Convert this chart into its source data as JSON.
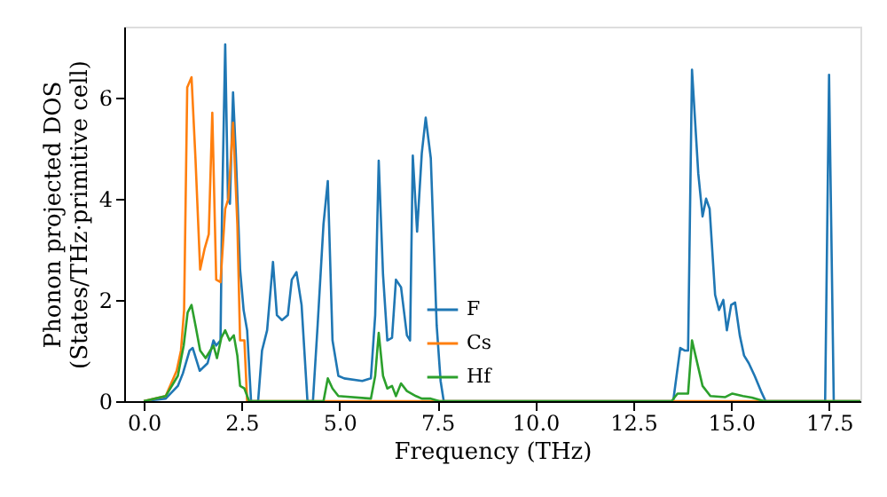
{
  "chart_data": {
    "type": "line",
    "xlabel": "Frequency (THz)",
    "ylabel": "Phonon projected DOS\n(States/THz·primitive cell)",
    "xlim": [
      -0.5,
      18.3
    ],
    "ylim": [
      0,
      7.4
    ],
    "xticks": [
      {
        "value": 0,
        "label": "0.0"
      },
      {
        "value": 2.5,
        "label": "2.5"
      },
      {
        "value": 5,
        "label": "5.0"
      },
      {
        "value": 7.5,
        "label": "7.5"
      },
      {
        "value": 10,
        "label": "10.0"
      },
      {
        "value": 12.5,
        "label": "12.5"
      },
      {
        "value": 15,
        "label": "15.0"
      },
      {
        "value": 17.5,
        "label": "17.5"
      }
    ],
    "yticks": [
      0,
      2,
      4,
      6
    ],
    "grid": false,
    "legend": "bottom",
    "line_style": "solid",
    "marker": "none",
    "series": [
      {
        "name": "F",
        "color": "#1f77b4",
        "x": [
          0,
          0.56,
          0.87,
          1.0,
          1.17,
          1.25,
          1.43,
          1.63,
          1.78,
          1.85,
          1.96,
          2.0,
          2.08,
          2.15,
          2.2,
          2.28,
          2.35,
          2.46,
          2.55,
          2.64,
          2.74,
          2.92,
          3.02,
          3.15,
          3.3,
          3.4,
          3.53,
          3.68,
          3.78,
          3.9,
          4.03,
          4.18,
          4.32,
          4.44,
          4.59,
          4.7,
          4.82,
          4.97,
          5.12,
          5.58,
          5.8,
          5.91,
          6.0,
          6.11,
          6.22,
          6.34,
          6.44,
          6.57,
          6.72,
          6.8,
          6.87,
          6.98,
          7.1,
          7.2,
          7.33,
          7.48,
          7.58,
          7.66,
          13.52,
          13.7,
          13.81,
          13.9,
          14.0,
          14.16,
          14.27,
          14.36,
          14.45,
          14.59,
          14.69,
          14.8,
          14.89,
          15.0,
          15.1,
          15.22,
          15.33,
          15.45,
          15.6,
          15.76,
          15.88,
          17.4,
          17.5,
          17.62,
          18.3
        ],
        "values": [
          0,
          0.05,
          0.3,
          0.55,
          1.0,
          1.05,
          0.6,
          0.75,
          1.2,
          1.1,
          1.2,
          3.8,
          7.05,
          4.0,
          3.9,
          6.1,
          4.9,
          2.6,
          1.8,
          1.4,
          0,
          0,
          1.0,
          1.4,
          2.75,
          1.7,
          1.6,
          1.7,
          2.4,
          2.55,
          1.9,
          0,
          0,
          1.5,
          3.5,
          4.35,
          1.2,
          0.5,
          0.45,
          0.4,
          0.45,
          1.7,
          4.75,
          2.5,
          1.2,
          1.25,
          2.4,
          2.25,
          1.3,
          1.2,
          4.85,
          3.35,
          4.9,
          5.6,
          4.8,
          1.5,
          0.4,
          0,
          0,
          1.05,
          1.0,
          1.0,
          6.55,
          4.5,
          3.65,
          4.0,
          3.8,
          2.1,
          1.8,
          2.0,
          1.4,
          1.9,
          1.95,
          1.3,
          0.9,
          0.75,
          0.5,
          0.2,
          0,
          0,
          6.45,
          0,
          0
        ]
      },
      {
        "name": "Cs",
        "color": "#ff7f0e",
        "x": [
          0,
          0.56,
          0.84,
          0.95,
          1.03,
          1.11,
          1.22,
          1.32,
          1.44,
          1.55,
          1.66,
          1.75,
          1.85,
          1.96,
          2.08,
          2.16,
          2.28,
          2.39,
          2.46,
          2.57,
          2.64,
          18.3
        ],
        "values": [
          0,
          0.1,
          0.6,
          1.0,
          1.8,
          6.2,
          6.4,
          4.8,
          2.6,
          3.0,
          3.3,
          5.7,
          2.4,
          2.35,
          3.8,
          4.0,
          5.5,
          3.5,
          1.2,
          1.2,
          0,
          0
        ]
      },
      {
        "name": "Hf",
        "color": "#2ca02c",
        "x": [
          0,
          0.56,
          0.87,
          1.02,
          1.12,
          1.22,
          1.32,
          1.44,
          1.58,
          1.78,
          1.87,
          1.98,
          2.08,
          2.19,
          2.3,
          2.39,
          2.46,
          2.57,
          2.69,
          4.59,
          4.7,
          4.82,
          4.97,
          5.8,
          5.91,
          6.0,
          6.11,
          6.22,
          6.34,
          6.44,
          6.57,
          6.72,
          6.95,
          7.1,
          7.33,
          7.55,
          13.48,
          13.63,
          13.9,
          14.0,
          14.12,
          14.27,
          14.47,
          14.85,
          15.03,
          15.3,
          15.53,
          15.84,
          18.3
        ],
        "values": [
          0,
          0.1,
          0.5,
          1.1,
          1.75,
          1.9,
          1.5,
          1.0,
          0.85,
          1.1,
          0.85,
          1.25,
          1.4,
          1.2,
          1.3,
          0.9,
          0.3,
          0.25,
          0,
          0,
          0.45,
          0.25,
          0.1,
          0.05,
          0.5,
          1.35,
          0.5,
          0.25,
          0.3,
          0.1,
          0.35,
          0.2,
          0.1,
          0.05,
          0.05,
          0,
          0,
          0.15,
          0.15,
          1.2,
          0.8,
          0.3,
          0.1,
          0.08,
          0.15,
          0.1,
          0.07,
          0,
          0
        ]
      }
    ]
  }
}
